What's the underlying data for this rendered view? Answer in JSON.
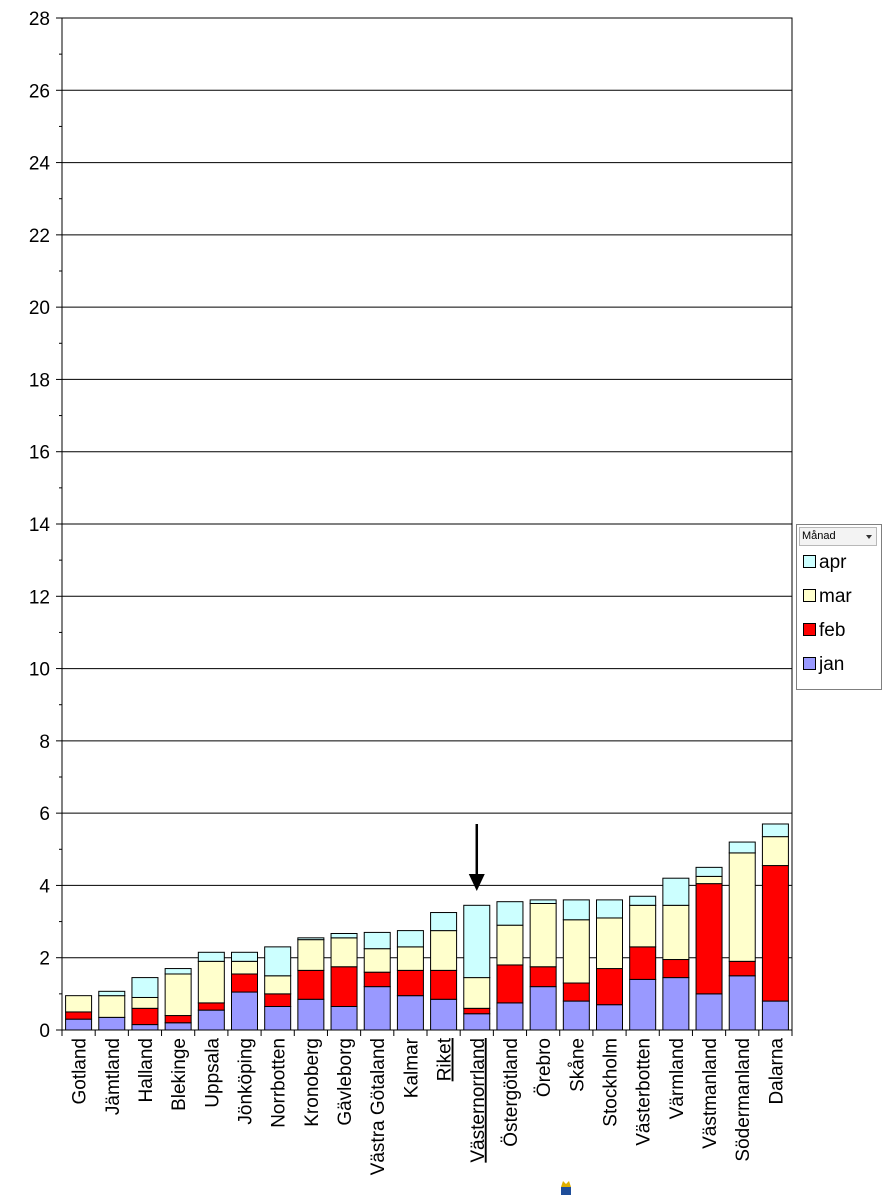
{
  "chart_data": {
    "type": "bar",
    "stacked": true,
    "title": "",
    "xlabel": "",
    "ylabel": "",
    "ylim": [
      0,
      28
    ],
    "y_major_ticks": [
      0,
      2,
      4,
      6,
      8,
      10,
      12,
      14,
      16,
      18,
      20,
      22,
      24,
      26,
      28
    ],
    "grid": true,
    "legend_position": "right",
    "categories": [
      "Gotland",
      "Jämtland",
      "Halland",
      "Blekinge",
      "Uppsala",
      "Jönköping",
      "Norrbotten",
      "Kronoberg",
      "Gävleborg",
      "Västra Götaland",
      "Kalmar",
      "Riket",
      "Västernorrland",
      "Östergötland",
      "Örebro",
      "Skåne",
      "Stockholm",
      "Västerbotten",
      "Värmland",
      "Västmanland",
      "Södermanland",
      "Dalarna"
    ],
    "underlined_categories": [
      "Riket",
      "Västernorrland"
    ],
    "highlight_arrow_category": "Västernorrland",
    "series": [
      {
        "name": "jan",
        "color": "#9999ff",
        "values": [
          0.3,
          0.35,
          0.15,
          0.2,
          0.55,
          1.05,
          0.65,
          0.85,
          0.65,
          1.2,
          0.95,
          0.85,
          0.45,
          0.75,
          1.2,
          0.8,
          0.7,
          1.4,
          1.45,
          1.0,
          1.5,
          0.8
        ]
      },
      {
        "name": "feb",
        "color": "#ff0000",
        "values": [
          0.2,
          0.0,
          0.45,
          0.2,
          0.2,
          0.5,
          0.35,
          0.8,
          1.1,
          0.4,
          0.7,
          0.8,
          0.15,
          1.05,
          0.55,
          0.5,
          1.0,
          0.9,
          0.5,
          3.05,
          0.4,
          3.75
        ]
      },
      {
        "name": "mar",
        "color": "#ffffcc",
        "values": [
          0.45,
          0.6,
          0.3,
          1.15,
          1.15,
          0.35,
          0.5,
          0.85,
          0.8,
          0.65,
          0.65,
          1.1,
          0.85,
          1.1,
          1.75,
          1.75,
          1.4,
          1.15,
          1.5,
          0.2,
          3.0,
          0.8
        ]
      },
      {
        "name": "apr",
        "color": "#ccffff",
        "values": [
          0.0,
          0.12,
          0.55,
          0.15,
          0.25,
          0.25,
          0.8,
          0.05,
          0.12,
          0.45,
          0.45,
          0.5,
          2.0,
          0.65,
          0.1,
          0.55,
          0.5,
          0.25,
          0.75,
          0.25,
          0.3,
          0.35
        ]
      }
    ]
  },
  "legend": {
    "title": "Månad",
    "order": [
      3,
      2,
      1,
      0
    ]
  },
  "footer_icon": "crown-logo-icon"
}
